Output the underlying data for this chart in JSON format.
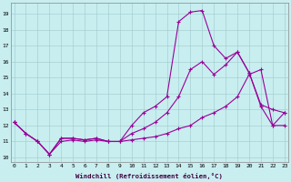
{
  "xlabel": "Windchill (Refroidissement éolien,°C)",
  "background_color": "#c8eef0",
  "line_color": "#990099",
  "line1_x": [
    0,
    1,
    2,
    3,
    4,
    5,
    6,
    7,
    8,
    9,
    10,
    11,
    12,
    13,
    14,
    15,
    16,
    17,
    18,
    19,
    20,
    21,
    22,
    23
  ],
  "line1_y": [
    12.2,
    11.5,
    11.0,
    10.2,
    11.2,
    11.2,
    11.1,
    11.2,
    11.0,
    11.0,
    12.0,
    12.8,
    13.2,
    13.8,
    18.5,
    19.1,
    19.2,
    17.0,
    16.2,
    16.6,
    15.3,
    13.2,
    12.0,
    12.8
  ],
  "line2_x": [
    0,
    1,
    2,
    3,
    4,
    5,
    6,
    7,
    8,
    9,
    10,
    11,
    12,
    13,
    14,
    15,
    16,
    17,
    18,
    19,
    20,
    21,
    22,
    23
  ],
  "line2_y": [
    12.2,
    11.5,
    11.0,
    10.2,
    11.2,
    11.2,
    11.1,
    11.2,
    11.0,
    11.0,
    11.5,
    11.8,
    12.2,
    12.8,
    13.8,
    15.5,
    16.0,
    15.2,
    15.8,
    16.6,
    15.3,
    13.3,
    13.0,
    12.8
  ],
  "line3_x": [
    0,
    1,
    2,
    3,
    4,
    5,
    6,
    7,
    8,
    9,
    10,
    11,
    12,
    13,
    14,
    15,
    16,
    17,
    18,
    19,
    20,
    21,
    22,
    23
  ],
  "line3_y": [
    12.2,
    11.5,
    11.0,
    10.2,
    11.0,
    11.1,
    11.0,
    11.1,
    11.0,
    11.0,
    11.1,
    11.2,
    11.3,
    11.5,
    11.8,
    12.0,
    12.5,
    12.8,
    13.2,
    13.8,
    15.2,
    15.5,
    12.0,
    12.0
  ],
  "ylim_min": 9.7,
  "ylim_max": 19.7,
  "xlim_min": -0.3,
  "xlim_max": 23.3,
  "yticks": [
    10,
    11,
    12,
    13,
    14,
    15,
    16,
    17,
    18,
    19
  ],
  "xticks": [
    0,
    1,
    2,
    3,
    4,
    5,
    6,
    7,
    8,
    9,
    10,
    11,
    12,
    13,
    14,
    15,
    16,
    17,
    18,
    19,
    20,
    21,
    22,
    23
  ]
}
